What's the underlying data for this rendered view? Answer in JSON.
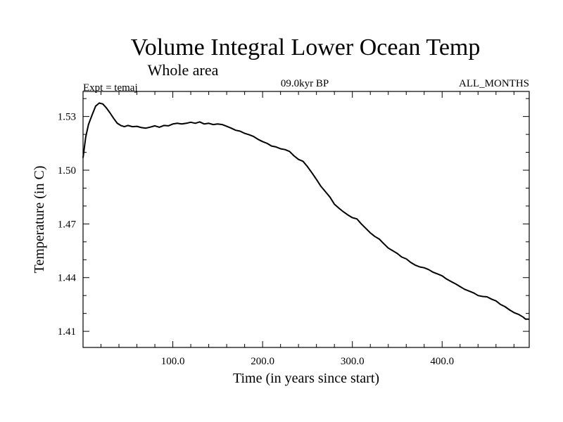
{
  "chart_data": {
    "type": "line",
    "title": "Volume Integral Lower Ocean Temp",
    "subtitle": "Whole area",
    "experiment": "Expt = temaj",
    "period": "09.0kyr BP",
    "months": "ALL_MONTHS",
    "xlabel": "Time (in years since start)",
    "ylabel": "Temperature (in C)",
    "xlim": [
      0,
      497
    ],
    "ylim": [
      1.401,
      1.544
    ],
    "xticks": [
      100,
      200,
      300,
      400
    ],
    "xtick_labels": [
      "100.0",
      "200.0",
      "300.0",
      "400.0"
    ],
    "yticks": [
      1.41,
      1.44,
      1.47,
      1.5,
      1.53
    ],
    "ytick_labels": [
      "1.41",
      "1.44",
      "1.47",
      "1.50",
      "1.53"
    ],
    "grid": false,
    "series": [
      {
        "name": "temaj",
        "x": [
          0,
          3,
          6,
          10,
          14,
          18,
          22,
          26,
          30,
          34,
          38,
          42,
          46,
          50,
          55,
          60,
          65,
          70,
          75,
          80,
          85,
          90,
          95,
          100,
          105,
          110,
          115,
          120,
          125,
          130,
          135,
          140,
          145,
          150,
          155,
          160,
          165,
          170,
          175,
          180,
          185,
          190,
          195,
          200,
          205,
          210,
          215,
          220,
          225,
          230,
          235,
          240,
          245,
          250,
          255,
          260,
          265,
          270,
          275,
          280,
          285,
          290,
          295,
          300,
          305,
          310,
          315,
          320,
          325,
          330,
          335,
          340,
          345,
          350,
          355,
          360,
          365,
          370,
          375,
          380,
          385,
          390,
          395,
          400,
          405,
          410,
          415,
          420,
          425,
          430,
          435,
          440,
          445,
          450,
          455,
          460,
          465,
          470,
          475,
          480,
          485,
          490,
          493,
          497
        ],
        "y": [
          1.5069,
          1.5185,
          1.5255,
          1.5308,
          1.5358,
          1.5375,
          1.537,
          1.5348,
          1.532,
          1.529,
          1.5263,
          1.525,
          1.5243,
          1.525,
          1.5243,
          1.5245,
          1.5238,
          1.5235,
          1.5241,
          1.5248,
          1.524,
          1.525,
          1.5248,
          1.5258,
          1.5262,
          1.5258,
          1.5262,
          1.5268,
          1.5262,
          1.527,
          1.5258,
          1.5262,
          1.5255,
          1.5258,
          1.5255,
          1.5245,
          1.5235,
          1.5223,
          1.5218,
          1.5206,
          1.5198,
          1.5188,
          1.5172,
          1.516,
          1.515,
          1.5135,
          1.513,
          1.512,
          1.5115,
          1.5105,
          1.508,
          1.506,
          1.505,
          1.502,
          1.4985,
          1.4948,
          1.491,
          1.488,
          1.485,
          1.481,
          1.4788,
          1.4768,
          1.475,
          1.4735,
          1.4728,
          1.47,
          1.4675,
          1.465,
          1.463,
          1.4615,
          1.459,
          1.4565,
          1.455,
          1.4535,
          1.4515,
          1.4505,
          1.4485,
          1.447,
          1.446,
          1.4455,
          1.4445,
          1.443,
          1.442,
          1.441,
          1.4392,
          1.4378,
          1.4365,
          1.435,
          1.4335,
          1.4325,
          1.4315,
          1.43,
          1.4295,
          1.4293,
          1.428,
          1.427,
          1.425,
          1.4238,
          1.422,
          1.4205,
          1.4195,
          1.418,
          1.4168,
          1.4168
        ]
      }
    ]
  }
}
